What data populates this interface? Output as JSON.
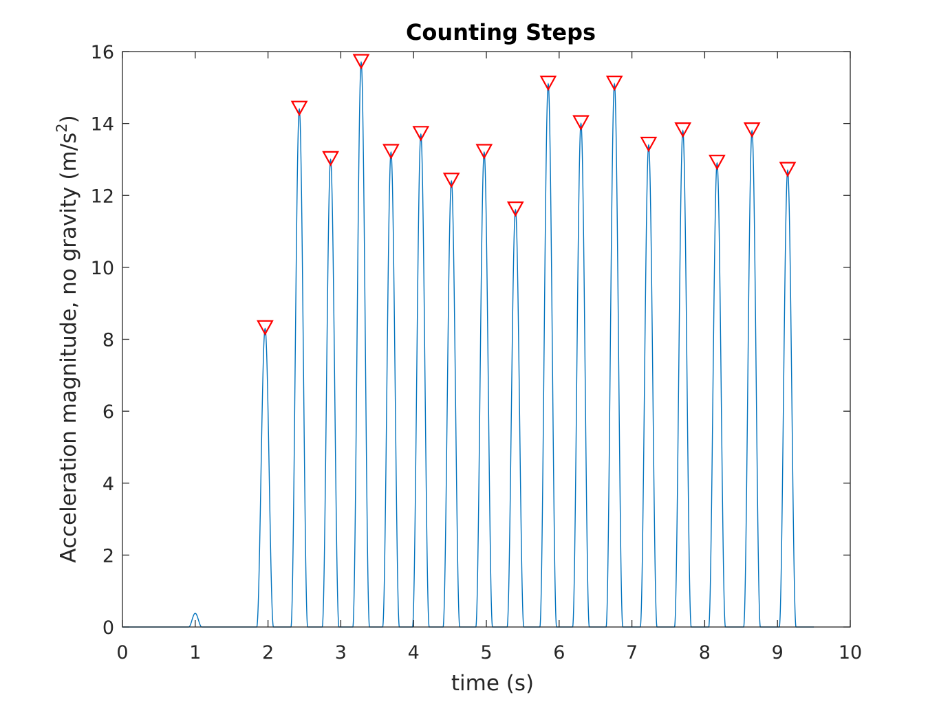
{
  "chart_data": {
    "type": "line",
    "title": "Counting Steps",
    "xlabel": "time (s)",
    "ylabel": "Acceleration magnitude, no gravity (m/s",
    "ylabel_superscript": "2",
    "ylabel_suffix": ")",
    "xlim": [
      0,
      10
    ],
    "ylim": [
      0,
      16
    ],
    "xticks": [
      0,
      1,
      2,
      3,
      4,
      5,
      6,
      7,
      8,
      9,
      10
    ],
    "yticks": [
      0,
      2,
      4,
      6,
      8,
      10,
      12,
      14,
      16
    ],
    "grid": false,
    "colors": {
      "line": "#0072BD",
      "marker": "#FF0000",
      "axis": "#262626"
    },
    "small_bump": {
      "x": 1.0,
      "y": 0.38
    },
    "series": [
      {
        "name": "Acceleration magnitude",
        "type": "line",
        "peaks": [
          {
            "x": 1.96,
            "y": 8.3
          },
          {
            "x": 2.43,
            "y": 14.4
          },
          {
            "x": 2.86,
            "y": 13.0
          },
          {
            "x": 3.28,
            "y": 15.7
          },
          {
            "x": 3.69,
            "y": 13.2
          },
          {
            "x": 4.1,
            "y": 13.7
          },
          {
            "x": 4.52,
            "y": 12.4
          },
          {
            "x": 4.97,
            "y": 13.2
          },
          {
            "x": 5.4,
            "y": 11.6
          },
          {
            "x": 5.85,
            "y": 15.1
          },
          {
            "x": 6.3,
            "y": 14.0
          },
          {
            "x": 6.76,
            "y": 15.1
          },
          {
            "x": 7.23,
            "y": 13.4
          },
          {
            "x": 7.7,
            "y": 13.8
          },
          {
            "x": 8.17,
            "y": 12.9
          },
          {
            "x": 8.65,
            "y": 13.8
          },
          {
            "x": 9.14,
            "y": 12.7
          }
        ]
      },
      {
        "name": "Detected peaks",
        "type": "scatter",
        "marker": "triangle-down",
        "points_from": "peaks"
      }
    ]
  }
}
